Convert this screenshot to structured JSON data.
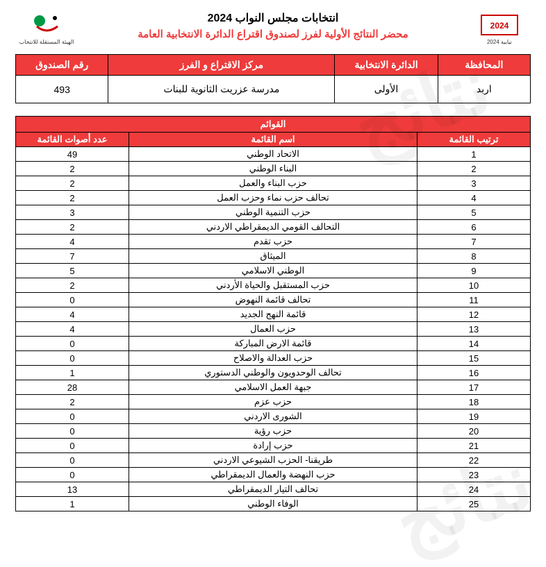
{
  "header": {
    "title1": "انتخابات مجلس النواب 2024",
    "title2": "محضر النتائج الأولية لفرز لصندوق اقتراع الدائرة الانتخابية العامة",
    "logo_right_label": "نيابية 2024",
    "logo_left_label": "الهيئة المستقلة للانتخاب"
  },
  "meta": {
    "headers": {
      "governorate": "المحافظة",
      "district": "الدائرة الانتخابية",
      "center": "مركز الاقتراع و الفرز",
      "box": "رقم الصندوق"
    },
    "values": {
      "governorate": "اربد",
      "district": "الأولى",
      "center": "مدرسة عزريت الثانوية للبنات",
      "box": "493"
    }
  },
  "lists": {
    "section_title": "القوائم",
    "columns": {
      "order": "ترتيب القائمة",
      "name": "اسم القائمة",
      "votes": "عدد أصوات القائمة"
    },
    "rows": [
      {
        "order": "1",
        "name": "الاتحاد الوطني",
        "votes": "49"
      },
      {
        "order": "2",
        "name": "البناء الوطني",
        "votes": "2"
      },
      {
        "order": "3",
        "name": "حزب البناء والعمل",
        "votes": "2"
      },
      {
        "order": "4",
        "name": "تحالف حزب نماء وحزب العمل",
        "votes": "2"
      },
      {
        "order": "5",
        "name": "حزب التنمية الوطني",
        "votes": "3"
      },
      {
        "order": "6",
        "name": "التحالف القومي الديمقراطي الاردني",
        "votes": "2"
      },
      {
        "order": "7",
        "name": "حزب تقدم",
        "votes": "4"
      },
      {
        "order": "8",
        "name": "الميثاق",
        "votes": "7"
      },
      {
        "order": "9",
        "name": "الوطني الاسلامي",
        "votes": "5"
      },
      {
        "order": "10",
        "name": "حزب المستقبل والحياة الأردني",
        "votes": "2"
      },
      {
        "order": "11",
        "name": "تحالف قائمة النهوض",
        "votes": "0"
      },
      {
        "order": "12",
        "name": "قائمة النهج الجديد",
        "votes": "4"
      },
      {
        "order": "13",
        "name": "حزب العمال",
        "votes": "4"
      },
      {
        "order": "14",
        "name": "قائمة الارض المباركة",
        "votes": "0"
      },
      {
        "order": "15",
        "name": "حزب العدالة والاصلاح",
        "votes": "0"
      },
      {
        "order": "16",
        "name": "تحالف الوحدويون والوطني الدستوري",
        "votes": "1"
      },
      {
        "order": "17",
        "name": "جبهة العمل الاسلامي",
        "votes": "28"
      },
      {
        "order": "18",
        "name": "حزب عزم",
        "votes": "2"
      },
      {
        "order": "19",
        "name": "الشورى الاردني",
        "votes": "0"
      },
      {
        "order": "20",
        "name": "حزب رؤية",
        "votes": "0"
      },
      {
        "order": "21",
        "name": "حزب إرادة",
        "votes": "0"
      },
      {
        "order": "22",
        "name": "طريقنا- الحزب الشيوعي الاردني",
        "votes": "0"
      },
      {
        "order": "23",
        "name": "حزب النهضة والعمال الديمقراطي",
        "votes": "0"
      },
      {
        "order": "24",
        "name": "تحالف التيار الديمقراطي",
        "votes": "13"
      },
      {
        "order": "25",
        "name": "الوفاء الوطني",
        "votes": "1"
      }
    ]
  },
  "style": {
    "accent": "#ef3b3b",
    "border": "#000000",
    "text": "#000000",
    "bg": "#ffffff"
  }
}
